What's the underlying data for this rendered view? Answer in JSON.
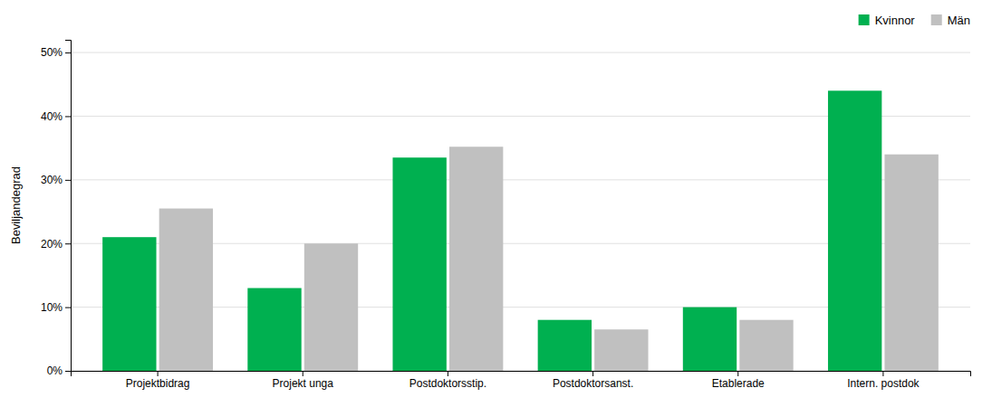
{
  "chart_data": {
    "type": "bar",
    "categories": [
      "Projektbidrag",
      "Projekt unga",
      "Postdoktorsstip.",
      "Postdoktorsanst.",
      "Etablerade",
      "Intern. postdok"
    ],
    "series": [
      {
        "name": "Kvinnor",
        "color": "#00b050",
        "values": [
          0.21,
          0.13,
          0.335,
          0.08,
          0.1,
          0.44
        ]
      },
      {
        "name": "Män",
        "color": "#c0c0c0",
        "values": [
          0.255,
          0.2,
          0.352,
          0.065,
          0.08,
          0.34
        ]
      }
    ],
    "ylabel": "Beviljandegrad",
    "ylim": [
      0,
      0.52
    ],
    "yticks": [
      {
        "value": 0,
        "label": "0%"
      },
      {
        "value": 0.1,
        "label": "10%"
      },
      {
        "value": 0.2,
        "label": "20%"
      },
      {
        "value": 0.3,
        "label": "30%"
      },
      {
        "value": 0.4,
        "label": "40%"
      },
      {
        "value": 0.5,
        "label": "50%"
      }
    ],
    "grid": true,
    "legend": "upper right"
  }
}
